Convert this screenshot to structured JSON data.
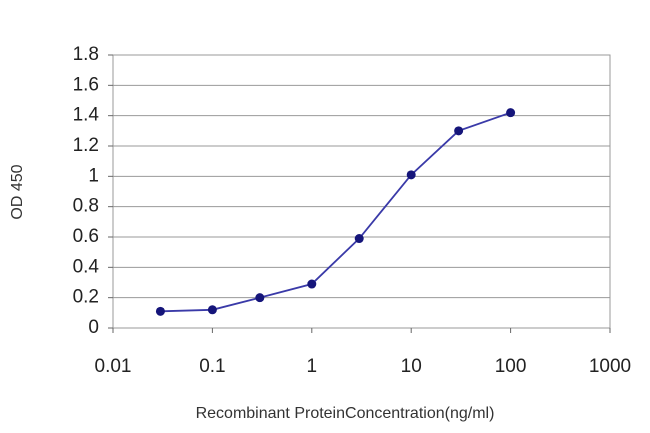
{
  "chart_data": {
    "type": "line",
    "x": [
      0.03,
      0.1,
      0.3,
      1,
      3,
      10,
      30,
      100
    ],
    "series": [
      {
        "name": "OD 450",
        "color": "#3a3aa8",
        "marker_color": "#15157a",
        "values": [
          0.11,
          0.12,
          0.2,
          0.29,
          0.59,
          1.01,
          1.3,
          1.42
        ]
      }
    ],
    "xlabel": "Recombinant ProteinConcentration(ng/ml)",
    "ylabel": "OD 450",
    "xscale": "log",
    "xlim": [
      0.01,
      1000
    ],
    "xticks": [
      0.01,
      0.1,
      1,
      10,
      100,
      1000
    ],
    "ylim": [
      0,
      1.8
    ],
    "yticks": [
      0,
      0.2,
      0.4,
      0.6,
      0.8,
      1,
      1.2,
      1.4,
      1.6,
      1.8
    ],
    "grid": true
  }
}
